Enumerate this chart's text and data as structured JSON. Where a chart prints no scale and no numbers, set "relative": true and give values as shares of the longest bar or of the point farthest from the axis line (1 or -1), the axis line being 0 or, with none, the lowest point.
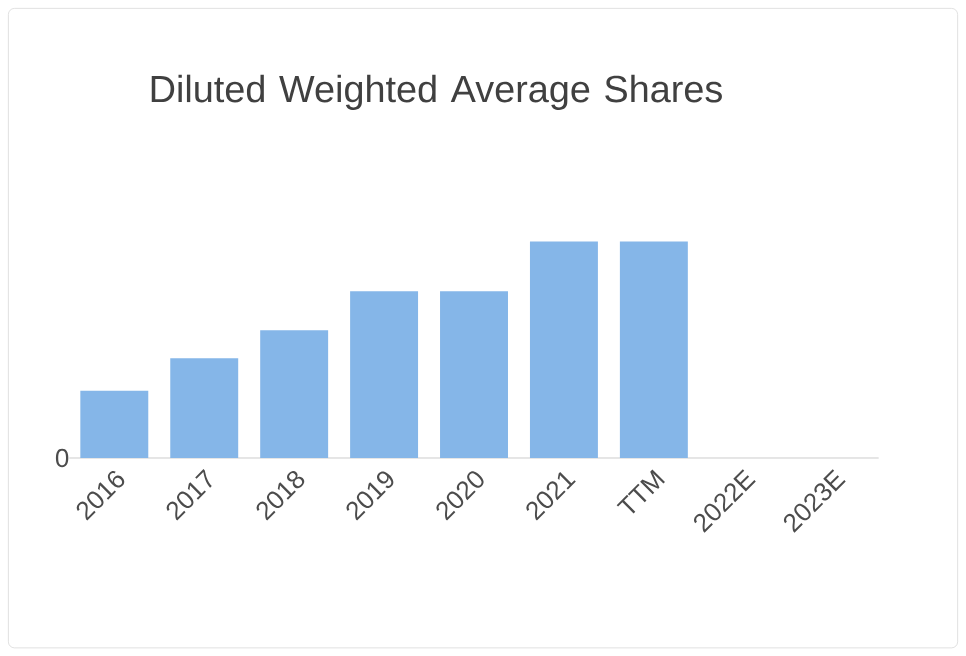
{
  "chart_data": {
    "type": "bar",
    "title": "Diluted Weighted Average Shares",
    "relative": true,
    "categories": [
      "2016",
      "2017",
      "2018",
      "2019",
      "2020",
      "2021",
      "TTM",
      "2022E",
      "2023E"
    ],
    "values": [
      0.31,
      0.46,
      0.59,
      0.77,
      0.77,
      1,
      1,
      null,
      null
    ],
    "color": "#85b6e8",
    "annotations": [
      "0"
    ]
  }
}
